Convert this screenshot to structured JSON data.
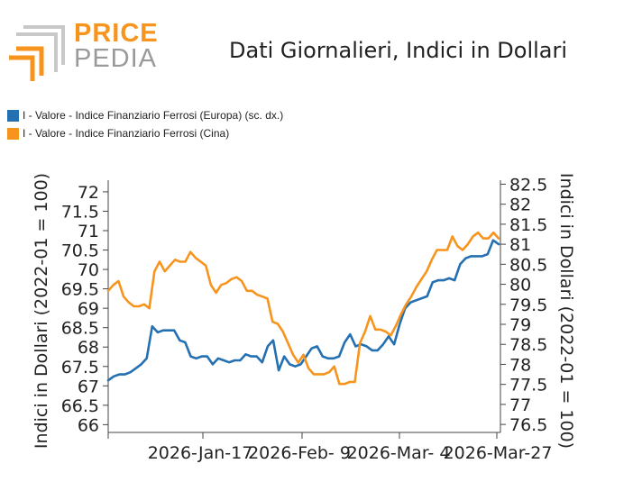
{
  "brand": {
    "top": "PRICE",
    "bottom": "PEDIA"
  },
  "colors": {
    "europa": "#2470b0",
    "cina": "#f7941d",
    "logo_orange": "#f7941d",
    "logo_grey": "#9a9a9a"
  },
  "chart_data": {
    "type": "line",
    "title": "Dati Giornalieri, Indici in Dollari",
    "ylabel_left": "Indici in Dollari (2022-01 = 100)",
    "ylabel_right": "Indici in Dollari (2022-01 = 100)",
    "x_ticks": [
      "2026-Jan-17",
      "2026-Feb- 9",
      "2026-Mar- 4",
      "2026-Mar-27"
    ],
    "y_left": {
      "min": 65.8,
      "max": 72.3,
      "ticks": [
        "66",
        "66.5",
        "67",
        "67.5",
        "68",
        "68.5",
        "69",
        "69.5",
        "70",
        "70.5",
        "71",
        "71.5",
        "72"
      ]
    },
    "y_right": {
      "min": 76.3,
      "max": 82.6,
      "ticks": [
        "76.5",
        "77",
        "77.5",
        "78",
        "78.5",
        "79",
        "79.5",
        "80",
        "80.5",
        "81",
        "81.5",
        "82",
        "82.5"
      ]
    },
    "grid": false,
    "legend_position": "top-left",
    "series": [
      {
        "name": "I - Valore - Indice Finanziario Ferrosi (Europa) (sc. dx.)",
        "axis": "right",
        "color": "#2470b0",
        "values": [
          77.6,
          77.7,
          77.75,
          77.75,
          77.8,
          77.9,
          78.0,
          78.15,
          78.95,
          78.8,
          78.85,
          78.85,
          78.85,
          78.6,
          78.55,
          78.2,
          78.15,
          78.2,
          78.2,
          78.0,
          78.15,
          78.1,
          78.05,
          78.1,
          78.1,
          78.25,
          78.2,
          78.2,
          78.05,
          78.45,
          78.6,
          77.85,
          78.2,
          78.0,
          77.95,
          78.0,
          78.2,
          78.4,
          78.45,
          78.2,
          78.15,
          78.15,
          78.2,
          78.55,
          78.75,
          78.45,
          78.5,
          78.45,
          78.35,
          78.35,
          78.5,
          78.7,
          78.5,
          79.0,
          79.4,
          79.55,
          79.6,
          79.65,
          79.7,
          80.05,
          80.1,
          80.1,
          80.15,
          80.1,
          80.5,
          80.65,
          80.7,
          80.7,
          80.7,
          80.75,
          81.1,
          81.0
        ]
      },
      {
        "name": "I - Valore - Indice Finanziario Ferrosi (Cina)",
        "axis": "left",
        "color": "#f7941d",
        "values": [
          69.45,
          69.6,
          69.7,
          69.3,
          69.15,
          69.05,
          69.05,
          69.1,
          69.0,
          69.95,
          70.2,
          69.95,
          70.1,
          70.25,
          70.2,
          70.2,
          70.45,
          70.3,
          70.2,
          70.1,
          69.6,
          69.4,
          69.6,
          69.65,
          69.75,
          69.8,
          69.7,
          69.45,
          69.45,
          69.35,
          69.3,
          69.25,
          68.65,
          68.6,
          68.4,
          68.1,
          67.8,
          67.6,
          67.8,
          67.45,
          67.3,
          67.3,
          67.3,
          67.35,
          67.5,
          67.05,
          67.05,
          67.1,
          67.1,
          68.1,
          68.4,
          68.8,
          68.45,
          68.45,
          68.4,
          68.3,
          68.55,
          68.85,
          69.1,
          69.3,
          69.55,
          69.75,
          69.95,
          70.25,
          70.5,
          70.5,
          70.5,
          70.85,
          70.6,
          70.5,
          70.65,
          70.85,
          70.95,
          70.8,
          70.8,
          70.95,
          70.8
        ]
      }
    ]
  }
}
